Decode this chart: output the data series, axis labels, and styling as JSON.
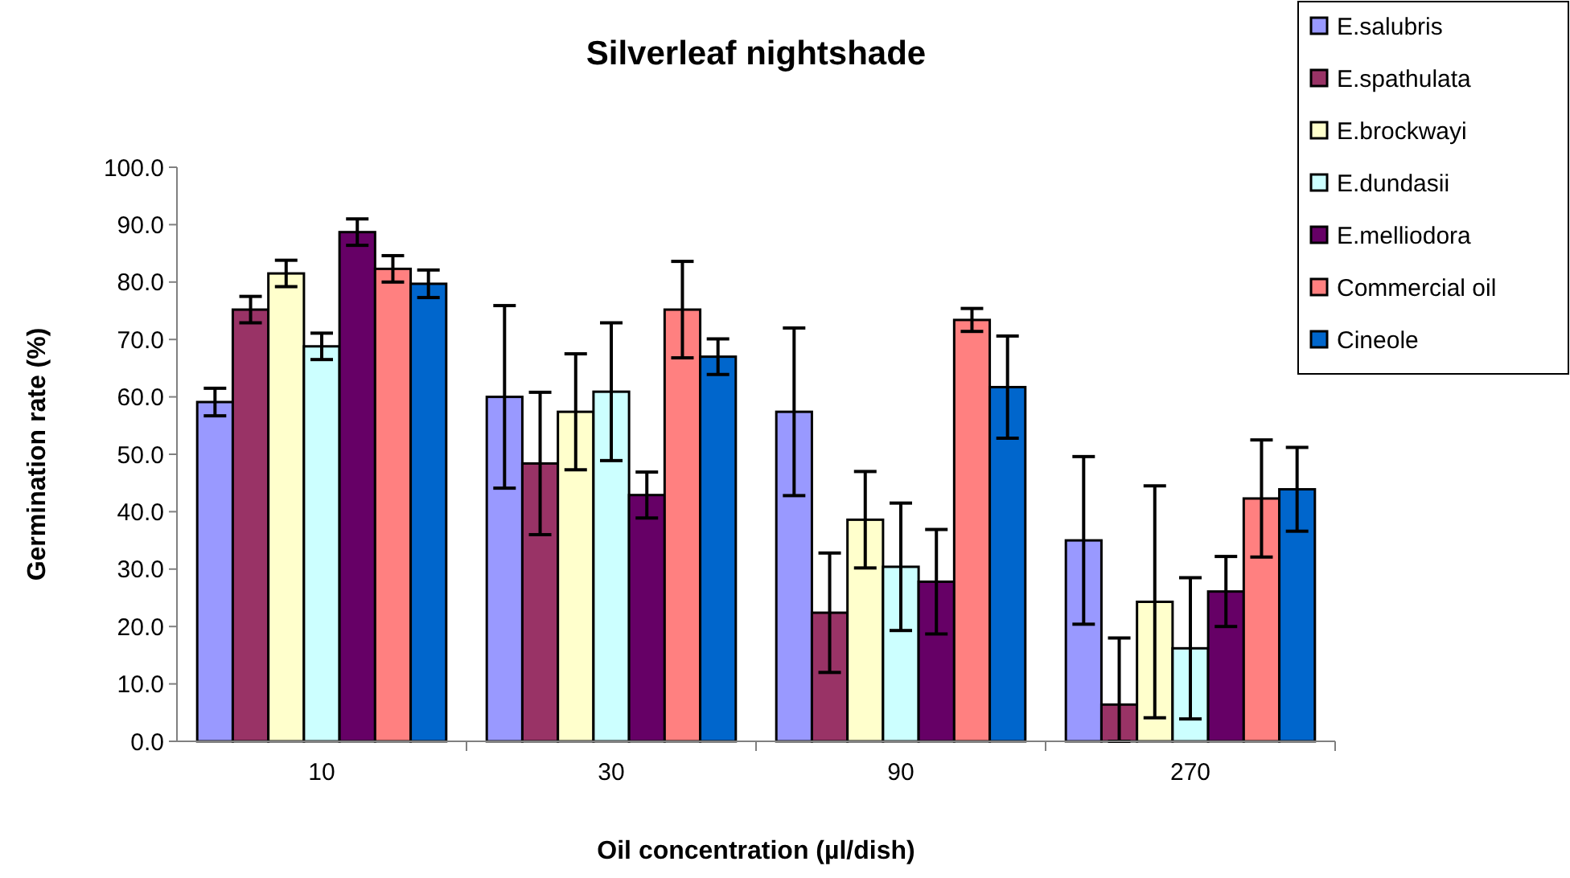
{
  "chart_data": {
    "type": "bar",
    "title": "Silverleaf nightshade",
    "xlabel": "Oil concentration (µl/dish)",
    "ylabel": "Germination rate (%)",
    "categories": [
      "10",
      "30",
      "90",
      "270"
    ],
    "ylim": [
      0,
      100
    ],
    "yticks": [
      {
        "value": 0,
        "label": "0.0"
      },
      {
        "value": 10,
        "label": "10.0"
      },
      {
        "value": 20,
        "label": "20.0"
      },
      {
        "value": 30,
        "label": "30.0"
      },
      {
        "value": 40,
        "label": "40.0"
      },
      {
        "value": 50,
        "label": "50.0"
      },
      {
        "value": 60,
        "label": "60.0"
      },
      {
        "value": 70,
        "label": "70.0"
      },
      {
        "value": 80,
        "label": "80.0"
      },
      {
        "value": 90,
        "label": "90.0"
      },
      {
        "value": 100,
        "label": "100.0"
      }
    ],
    "grid": false,
    "legend": "top right",
    "series": [
      {
        "name": "E.salubris",
        "color": "#9999ff",
        "values": [
          59.1,
          60.0,
          57.4,
          35.0
        ],
        "errors": [
          2.4,
          15.9,
          14.6,
          14.6
        ]
      },
      {
        "name": "E.spathulata",
        "color": "#993366",
        "values": [
          75.2,
          48.4,
          22.4,
          6.4
        ],
        "errors": [
          2.3,
          12.4,
          10.4,
          [
            0,
            18.0
          ]
        ]
      },
      {
        "name": "E.brockwayi",
        "color": "#ffffcc",
        "values": [
          81.5,
          57.4,
          38.6,
          24.3
        ],
        "errors": [
          2.3,
          10.1,
          8.4,
          20.2
        ]
      },
      {
        "name": "E.dundasii",
        "color": "#ccffff",
        "values": [
          68.8,
          60.9,
          30.4,
          16.2
        ],
        "errors": [
          2.3,
          12,
          11.1,
          12.3
        ]
      },
      {
        "name": "E.melliodora",
        "color": "#660066",
        "values": [
          88.7,
          42.9,
          27.8,
          26.1
        ],
        "errors": [
          2.3,
          4.0,
          9.1,
          6.1
        ]
      },
      {
        "name": "Commercial oil",
        "color": "#ff8080",
        "values": [
          82.3,
          75.2,
          73.4,
          42.3
        ],
        "errors": [
          2.3,
          8.4,
          2.0,
          10.2
        ]
      },
      {
        "name": "Cineole",
        "color": "#0066cc",
        "values": [
          79.7,
          67.0,
          61.7,
          43.9
        ],
        "errors": [
          2.4,
          3.1,
          8.9,
          7.3
        ]
      }
    ]
  }
}
